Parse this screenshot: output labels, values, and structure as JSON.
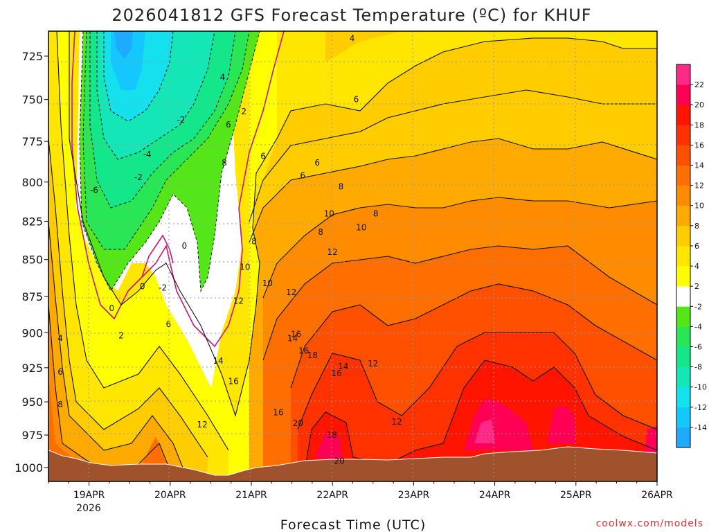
{
  "chart_data": {
    "type": "heatmap",
    "title": "2026041812 GFS Forecast Temperature (ºC) for KHUF",
    "xlabel": "Forecast Time (UTC)",
    "ylabel": "",
    "credit": "coolwx.com/models",
    "y_axis": {
      "ticks": [
        725,
        750,
        775,
        800,
        825,
        850,
        875,
        900,
        925,
        950,
        975,
        1000
      ],
      "range": [
        711,
        1011
      ],
      "inverted": true
    },
    "x_axis": {
      "ticks": [
        "19APR",
        "20APR",
        "21APR",
        "22APR",
        "23APR",
        "24APR",
        "25APR",
        "26APR"
      ],
      "year_label": "2026",
      "range_hours_from_19APR00": [
        -12,
        168
      ]
    },
    "colorbar": {
      "levels": [
        -16,
        -14,
        -12,
        -10,
        -8,
        -6,
        -4,
        -2,
        2,
        4,
        6,
        8,
        10,
        12,
        14,
        16,
        18,
        20,
        22,
        24
      ],
      "labels": [
        "-14",
        "-12",
        "-10",
        "-8",
        "-6",
        "-4",
        "-2",
        "2",
        "4",
        "6",
        "8",
        "10",
        "12",
        "14",
        "16",
        "18",
        "20",
        "22"
      ],
      "colors": [
        "#1eaaff",
        "#14c8ff",
        "#14e0ee",
        "#14e6b8",
        "#14e68a",
        "#28e655",
        "#55e61a",
        "#ffffff",
        "#ffff00",
        "#ffe600",
        "#ffcc00",
        "#ffaa00",
        "#ff8c00",
        "#ff6e00",
        "#ff5000",
        "#ff3200",
        "#ff1400",
        "#ff0055",
        "#ff2a88"
      ]
    },
    "ground_color": "#a0522d",
    "zero_contour_color": "#c8147a",
    "contour_labels": [
      {
        "t": -8.5,
        "p": 904,
        "v": "4"
      },
      {
        "t": -8.5,
        "p": 928,
        "v": "6"
      },
      {
        "t": -8.5,
        "p": 952,
        "v": "8"
      },
      {
        "t": 1.5,
        "p": 805,
        "v": "-6"
      },
      {
        "t": 6.7,
        "p": 883,
        "v": "0"
      },
      {
        "t": 9.5,
        "p": 902,
        "v": "2"
      },
      {
        "t": 15.8,
        "p": 868,
        "v": "0"
      },
      {
        "t": 17.2,
        "p": 783,
        "v": "-4"
      },
      {
        "t": 14.6,
        "p": 797,
        "v": "-2"
      },
      {
        "t": 21.8,
        "p": 869,
        "v": "-2"
      },
      {
        "t": 27.2,
        "p": 762,
        "v": "-2"
      },
      {
        "t": 28.2,
        "p": 841,
        "v": "0"
      },
      {
        "t": 23.5,
        "p": 894,
        "v": "6"
      },
      {
        "t": 39.5,
        "p": 737,
        "v": "4"
      },
      {
        "t": 45.8,
        "p": 757,
        "v": "2"
      },
      {
        "t": 40.0,
        "p": 788,
        "v": "8"
      },
      {
        "t": 41.2,
        "p": 765,
        "v": "6"
      },
      {
        "t": 46.1,
        "p": 855,
        "v": "10"
      },
      {
        "t": 44.2,
        "p": 878,
        "v": "12"
      },
      {
        "t": 38.2,
        "p": 920,
        "v": "14"
      },
      {
        "t": 42.7,
        "p": 935,
        "v": "16"
      },
      {
        "t": 33.5,
        "p": 967,
        "v": "12"
      },
      {
        "t": 48.8,
        "p": 838,
        "v": "8"
      },
      {
        "t": 51.5,
        "p": 784,
        "v": "6"
      },
      {
        "t": 52.8,
        "p": 866,
        "v": "10"
      },
      {
        "t": 56.0,
        "p": 958,
        "v": "16"
      },
      {
        "t": 59.8,
        "p": 872,
        "v": "12"
      },
      {
        "t": 60.2,
        "p": 904,
        "v": "14"
      },
      {
        "t": 61.8,
        "p": 966,
        "v": "20"
      },
      {
        "t": 66.1,
        "p": 916,
        "v": "18"
      },
      {
        "t": 61.2,
        "p": 901,
        "v": "16"
      },
      {
        "t": 63.2,
        "p": 796,
        "v": "6"
      },
      {
        "t": 63.5,
        "p": 913,
        "v": "16"
      },
      {
        "t": 67.5,
        "p": 788,
        "v": "6"
      },
      {
        "t": 71.0,
        "p": 820,
        "v": "10"
      },
      {
        "t": 72.0,
        "p": 845,
        "v": "12"
      },
      {
        "t": 74.5,
        "p": 803,
        "v": "8"
      },
      {
        "t": 68.5,
        "p": 832,
        "v": "8"
      },
      {
        "t": 73.2,
        "p": 929,
        "v": "16"
      },
      {
        "t": 75.2,
        "p": 924,
        "v": "14"
      },
      {
        "t": 74.0,
        "p": 995,
        "v": "20"
      },
      {
        "t": 71.8,
        "p": 975,
        "v": "18"
      },
      {
        "t": 77.8,
        "p": 715,
        "v": "4"
      },
      {
        "t": 79.0,
        "p": 750,
        "v": "6"
      },
      {
        "t": 80.5,
        "p": 829,
        "v": "10"
      },
      {
        "t": 84.8,
        "p": 820,
        "v": "8"
      },
      {
        "t": 84.0,
        "p": 922,
        "v": "12"
      },
      {
        "t": 91.0,
        "p": 965,
        "v": "12"
      }
    ]
  }
}
